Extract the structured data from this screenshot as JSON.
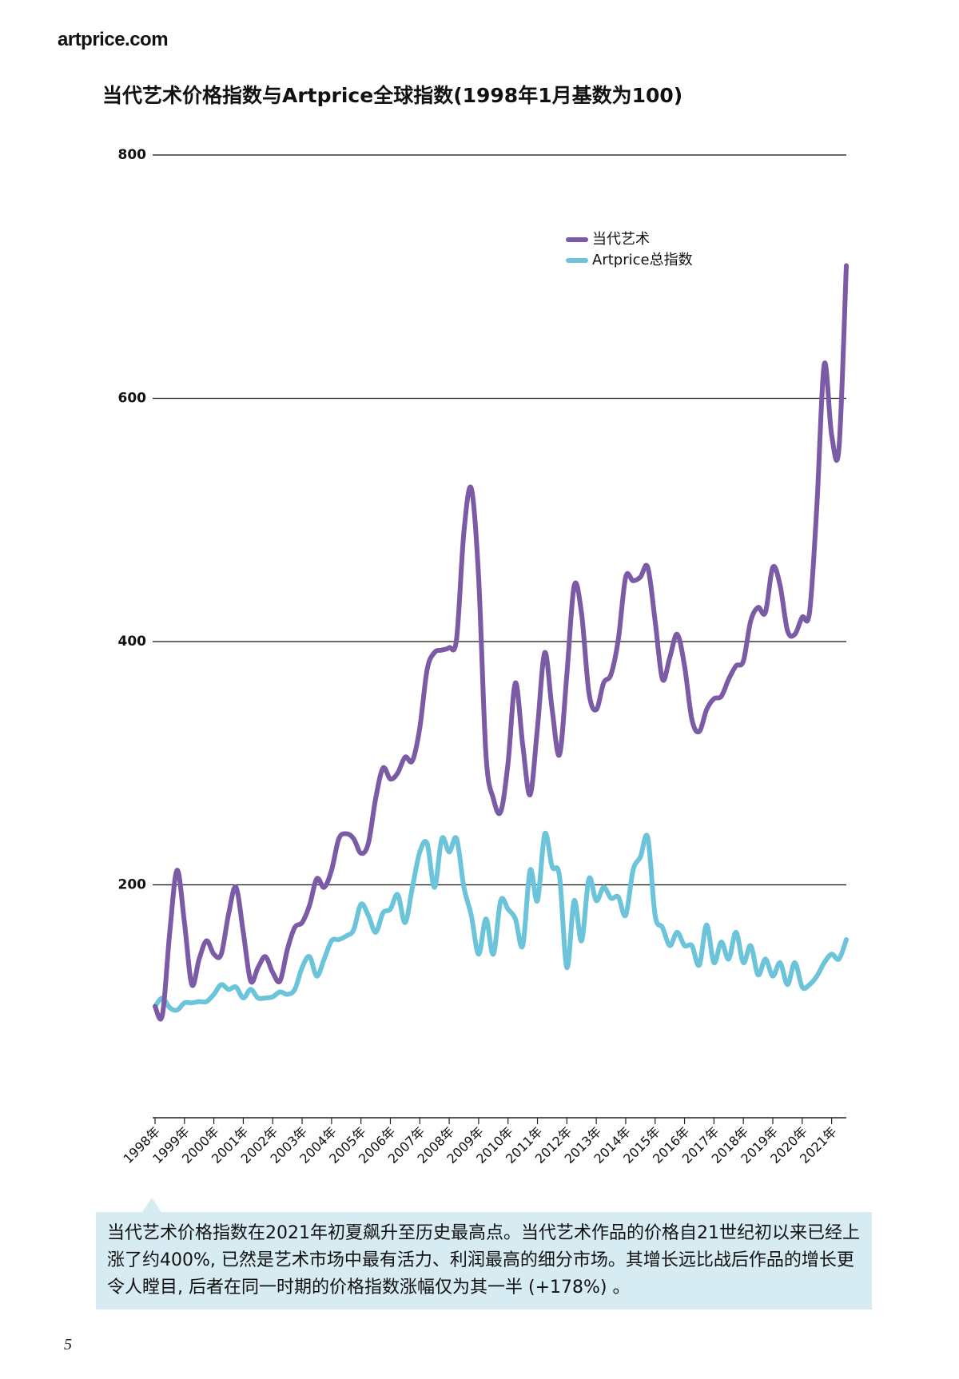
{
  "header": {
    "logo": "artprice.com"
  },
  "chart_data": {
    "type": "line",
    "title": "当代艺术价格指数与Artprice全球指数(1998年1月基数为100)",
    "x": [
      1998,
      1998.25,
      1998.5,
      1998.75,
      1999,
      1999.25,
      1999.5,
      1999.75,
      2000,
      2000.25,
      2000.5,
      2000.75,
      2001,
      2001.25,
      2001.5,
      2001.75,
      2002,
      2002.25,
      2002.5,
      2002.75,
      2003,
      2003.25,
      2003.5,
      2003.75,
      2004,
      2004.25,
      2004.5,
      2004.75,
      2005,
      2005.25,
      2005.5,
      2005.75,
      2006,
      2006.25,
      2006.5,
      2006.75,
      2007,
      2007.25,
      2007.5,
      2007.75,
      2008,
      2008.25,
      2008.5,
      2008.75,
      2009,
      2009.25,
      2009.5,
      2009.75,
      2010,
      2010.25,
      2010.5,
      2010.75,
      2011,
      2011.25,
      2011.5,
      2011.75,
      2012,
      2012.25,
      2012.5,
      2012.75,
      2013,
      2013.25,
      2013.5,
      2013.75,
      2014,
      2014.25,
      2014.5,
      2014.75,
      2015,
      2015.25,
      2015.5,
      2015.75,
      2016,
      2016.25,
      2016.5,
      2016.75,
      2017,
      2017.25,
      2017.5,
      2017.75,
      2018,
      2018.25,
      2018.5,
      2018.75,
      2019,
      2019.25,
      2019.5,
      2019.75,
      2020,
      2020.25,
      2020.5,
      2020.75,
      2021,
      2021.25,
      2021.5
    ],
    "series": [
      {
        "name": "当代艺术",
        "color": "#7b5aa6",
        "values": [
          100,
          93,
          161,
          212,
          169,
          118,
          139,
          154,
          143,
          143,
          176,
          198,
          161,
          121,
          132,
          141,
          128,
          121,
          147,
          165,
          169,
          183,
          205,
          198,
          212,
          238,
          242,
          238,
          226,
          234,
          271,
          296,
          287,
          292,
          305,
          302,
          329,
          377,
          391,
          393,
          395,
          402,
          490,
          526,
          453,
          307,
          271,
          260,
          300,
          366,
          315,
          274,
          329,
          391,
          344,
          307,
          373,
          446,
          423,
          358,
          344,
          366,
          373,
          402,
          453,
          450,
          453,
          461,
          417,
          369,
          387,
          406,
          380,
          336,
          326,
          344,
          353,
          355,
          369,
          380,
          384,
          417,
          428,
          424,
          461,
          446,
          409,
          406,
          420,
          424,
          512,
          628,
          570,
          559,
          709
        ]
      },
      {
        "name": "Artprice总指数",
        "color": "#6cc4db",
        "values": [
          100,
          107,
          99,
          97,
          103,
          103,
          104,
          104,
          110,
          118,
          114,
          116,
          107,
          114,
          107,
          107,
          108,
          112,
          110,
          114,
          132,
          141,
          125,
          139,
          154,
          155,
          158,
          163,
          184,
          175,
          161,
          177,
          180,
          192,
          169,
          198,
          227,
          234,
          198,
          238,
          227,
          238,
          198,
          175,
          143,
          172,
          143,
          187,
          180,
          172,
          150,
          212,
          187,
          242,
          215,
          207,
          132,
          187,
          154,
          205,
          187,
          198,
          189,
          190,
          175,
          212,
          223,
          239,
          175,
          165,
          150,
          161,
          150,
          150,
          134,
          167,
          136,
          153,
          139,
          161,
          136,
          150,
          126,
          139,
          125,
          136,
          118,
          136,
          116,
          118,
          125,
          136,
          143,
          139,
          155
        ]
      }
    ],
    "xlim": [
      1998,
      2021.5
    ],
    "xticks": [
      {
        "value": 1998,
        "label": "1998年"
      },
      {
        "value": 1999,
        "label": "1999年"
      },
      {
        "value": 2000,
        "label": "2000年"
      },
      {
        "value": 2001,
        "label": "2001年"
      },
      {
        "value": 2002,
        "label": "2002年"
      },
      {
        "value": 2003,
        "label": "2003年"
      },
      {
        "value": 2004,
        "label": "2004年"
      },
      {
        "value": 2005,
        "label": "2005年"
      },
      {
        "value": 2006,
        "label": "2006年"
      },
      {
        "value": 2007,
        "label": "2007年"
      },
      {
        "value": 2008,
        "label": "2008年"
      },
      {
        "value": 2009,
        "label": "2009年"
      },
      {
        "value": 2010,
        "label": "2010年"
      },
      {
        "value": 2011,
        "label": "2011年"
      },
      {
        "value": 2012,
        "label": "2012年"
      },
      {
        "value": 2013,
        "label": "2013年"
      },
      {
        "value": 2014,
        "label": "2014年"
      },
      {
        "value": 2015,
        "label": "2015年"
      },
      {
        "value": 2016,
        "label": "2016年"
      },
      {
        "value": 2017,
        "label": "2017年"
      },
      {
        "value": 2018,
        "label": "2018年"
      },
      {
        "value": 2019,
        "label": "2019年"
      },
      {
        "value": 2020,
        "label": "2020年"
      },
      {
        "value": 2021,
        "label": "2021年"
      }
    ],
    "ylim": [
      0,
      800
    ],
    "yticks": [
      200,
      400,
      600,
      800
    ],
    "grid": true,
    "legend": "top-right"
  },
  "caption": "当代艺术价格指数在2021年初夏飙升至历史最高点。当代艺术作品的价格自21世纪初以来已经上涨了约400%, 已然是艺术市场中最有活力、利润最高的细分市场。其增长远比战后作品的增长更令人瞠目, 后者在同一时期的价格指数涨幅仅为其一半 (+178%) 。",
  "page_number": "5"
}
